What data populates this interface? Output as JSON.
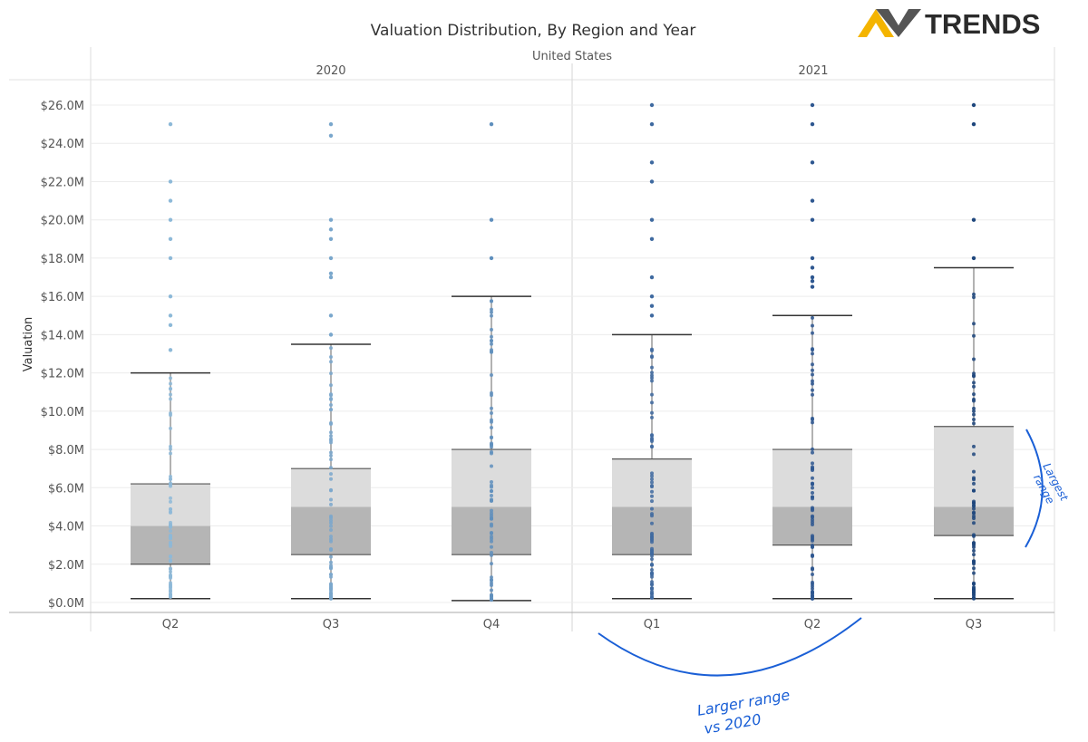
{
  "logo": {
    "text": "TRENDS",
    "colors": [
      "#f4b400",
      "#3a3a3a"
    ]
  },
  "chart_data": {
    "type": "box",
    "title": "Valuation Distribution, By Region and Year",
    "region": "United States",
    "ylabel": "Valuation",
    "ylim": [
      0,
      26
    ],
    "y_ticks": [
      0,
      2,
      4,
      6,
      8,
      10,
      12,
      14,
      16,
      18,
      20,
      22,
      24,
      26
    ],
    "y_tick_labels": [
      "$0.0M",
      "$2.0M",
      "$4.0M",
      "$6.0M",
      "$8.0M",
      "$10.0M",
      "$12.0M",
      "$14.0M",
      "$16.0M",
      "$18.0M",
      "$20.0M",
      "$22.0M",
      "$24.0M",
      "$26.0M"
    ],
    "groups": [
      {
        "year": "2020",
        "quarters": [
          {
            "label": "Q2",
            "color": "#8db9d8",
            "whisker_low": 0.2,
            "q1": 2.0,
            "median": 4.0,
            "q3": 6.2,
            "whisker_high": 12.0,
            "outliers": [
              13.2,
              14.5,
              15,
              16,
              18,
              19,
              20,
              21,
              22,
              25
            ]
          },
          {
            "label": "Q3",
            "color": "#7aa7cc",
            "whisker_low": 0.2,
            "q1": 2.5,
            "median": 5.0,
            "q3": 7.0,
            "whisker_high": 13.5,
            "outliers": [
              14,
              15,
              17,
              17.2,
              18,
              19,
              19.5,
              20,
              24.4,
              25
            ]
          },
          {
            "label": "Q4",
            "color": "#5f8fbd",
            "whisker_low": 0.1,
            "q1": 2.5,
            "median": 5.0,
            "q3": 8.0,
            "whisker_high": 16.0,
            "outliers": [
              18,
              20,
              25
            ]
          }
        ]
      },
      {
        "year": "2021",
        "quarters": [
          {
            "label": "Q1",
            "color": "#3f6aa0",
            "whisker_low": 0.2,
            "q1": 2.5,
            "median": 5.0,
            "q3": 7.5,
            "whisker_high": 14.0,
            "outliers": [
              15,
              15.5,
              16,
              17,
              19,
              20,
              22,
              23,
              25,
              26
            ]
          },
          {
            "label": "Q2",
            "color": "#2e5790",
            "whisker_low": 0.2,
            "q1": 3.0,
            "median": 5.0,
            "q3": 8.0,
            "whisker_high": 15.0,
            "outliers": [
              16.5,
              16.8,
              17,
              17.5,
              18,
              20,
              21,
              23,
              25,
              26
            ]
          },
          {
            "label": "Q3",
            "color": "#1f477d",
            "whisker_low": 0.2,
            "q1": 3.5,
            "median": 5.0,
            "q3": 9.2,
            "whisker_high": 17.5,
            "outliers": [
              18,
              20,
              25,
              26
            ]
          }
        ]
      }
    ],
    "annotations": [
      {
        "text_lines": [
          "Larger range",
          "vs 2020"
        ],
        "color": "#1a5fd6"
      },
      {
        "text_lines": [
          "Largest",
          "range"
        ],
        "color": "#1a5fd6"
      }
    ]
  }
}
